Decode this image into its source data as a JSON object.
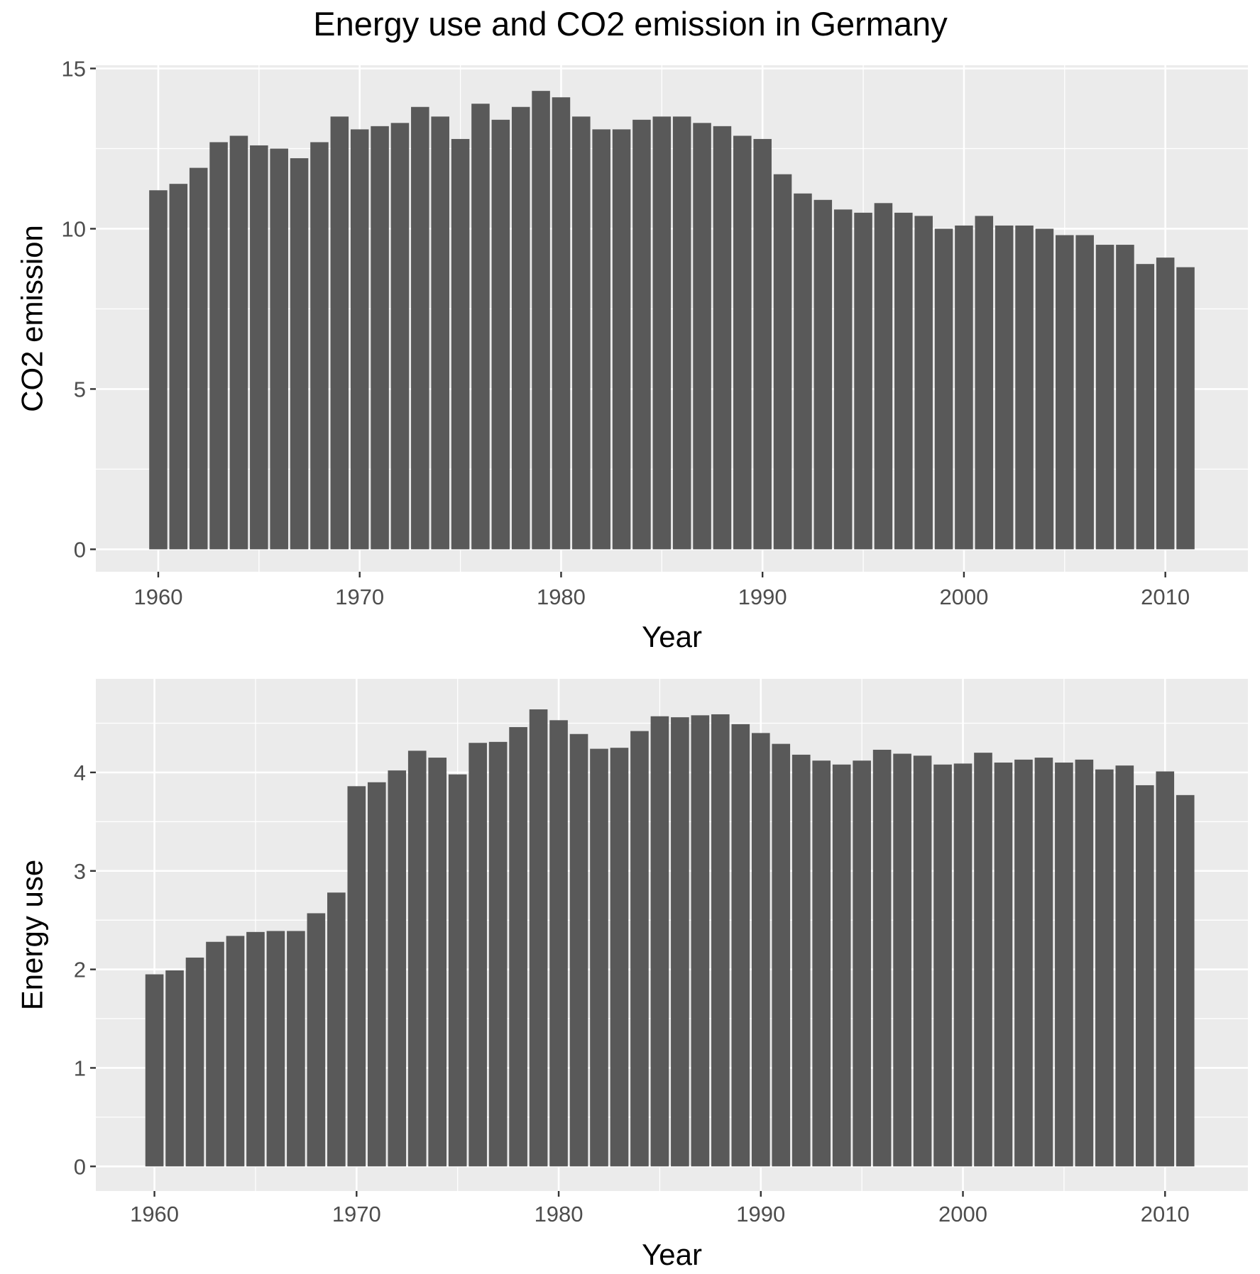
{
  "title": "Energy use and CO2 emission in Germany",
  "colors": {
    "panel_bg": "#ebebeb",
    "grid": "#ffffff",
    "bar": "#595959",
    "tick_text": "#4d4d4d",
    "tick_mark": "#333333"
  },
  "chart_data": [
    {
      "type": "bar",
      "xlabel": "Year",
      "ylabel": "CO2 emission",
      "xlim": [
        1956.9,
        2014.1
      ],
      "ylim": [
        -0.7,
        15.1
      ],
      "x_ticks": [
        1960,
        1970,
        1980,
        1990,
        2000,
        2010
      ],
      "y_ticks": [
        0,
        5,
        10,
        15
      ],
      "grid": true,
      "x": [
        1960,
        1961,
        1962,
        1963,
        1964,
        1965,
        1966,
        1967,
        1968,
        1969,
        1970,
        1971,
        1972,
        1973,
        1974,
        1975,
        1976,
        1977,
        1978,
        1979,
        1980,
        1981,
        1982,
        1983,
        1984,
        1985,
        1986,
        1987,
        1988,
        1989,
        1990,
        1991,
        1992,
        1993,
        1994,
        1995,
        1996,
        1997,
        1998,
        1999,
        2000,
        2001,
        2002,
        2003,
        2004,
        2005,
        2006,
        2007,
        2008,
        2009,
        2010,
        2011
      ],
      "values": [
        11.2,
        11.4,
        11.9,
        12.7,
        12.9,
        12.6,
        12.5,
        12.2,
        12.7,
        13.5,
        13.1,
        13.2,
        13.3,
        13.8,
        13.5,
        12.8,
        13.9,
        13.4,
        13.8,
        14.3,
        14.1,
        13.5,
        13.1,
        13.1,
        13.4,
        13.5,
        13.5,
        13.3,
        13.2,
        12.9,
        12.8,
        11.7,
        11.1,
        10.9,
        10.6,
        10.5,
        10.8,
        10.5,
        10.4,
        10.0,
        10.1,
        10.4,
        10.1,
        10.1,
        10.0,
        9.8,
        9.8,
        9.5,
        9.5,
        8.9,
        9.1,
        8.8
      ]
    },
    {
      "type": "bar",
      "xlabel": "Year",
      "ylabel": "Energy use",
      "xlim": [
        1957.1,
        2014.1
      ],
      "ylim": [
        -0.25,
        4.95
      ],
      "x_ticks": [
        1960,
        1970,
        1980,
        1990,
        2000,
        2010
      ],
      "y_ticks": [
        0,
        1,
        2,
        3,
        4
      ],
      "grid": true,
      "x": [
        1960,
        1961,
        1962,
        1963,
        1964,
        1965,
        1966,
        1967,
        1968,
        1969,
        1970,
        1971,
        1972,
        1973,
        1974,
        1975,
        1976,
        1977,
        1978,
        1979,
        1980,
        1981,
        1982,
        1983,
        1984,
        1985,
        1986,
        1987,
        1988,
        1989,
        1990,
        1991,
        1992,
        1993,
        1994,
        1995,
        1996,
        1997,
        1998,
        1999,
        2000,
        2001,
        2002,
        2003,
        2004,
        2005,
        2006,
        2007,
        2008,
        2009,
        2010,
        2011
      ],
      "values": [
        1.95,
        1.99,
        2.12,
        2.28,
        2.34,
        2.38,
        2.39,
        2.39,
        2.57,
        2.78,
        3.86,
        3.9,
        4.02,
        4.22,
        4.15,
        3.98,
        4.3,
        4.31,
        4.46,
        4.64,
        4.53,
        4.39,
        4.24,
        4.25,
        4.42,
        4.57,
        4.56,
        4.58,
        4.59,
        4.49,
        4.4,
        4.29,
        4.18,
        4.12,
        4.08,
        4.12,
        4.23,
        4.19,
        4.17,
        4.08,
        4.09,
        4.2,
        4.1,
        4.13,
        4.15,
        4.1,
        4.13,
        4.03,
        4.07,
        3.87,
        4.01,
        3.77
      ]
    }
  ]
}
